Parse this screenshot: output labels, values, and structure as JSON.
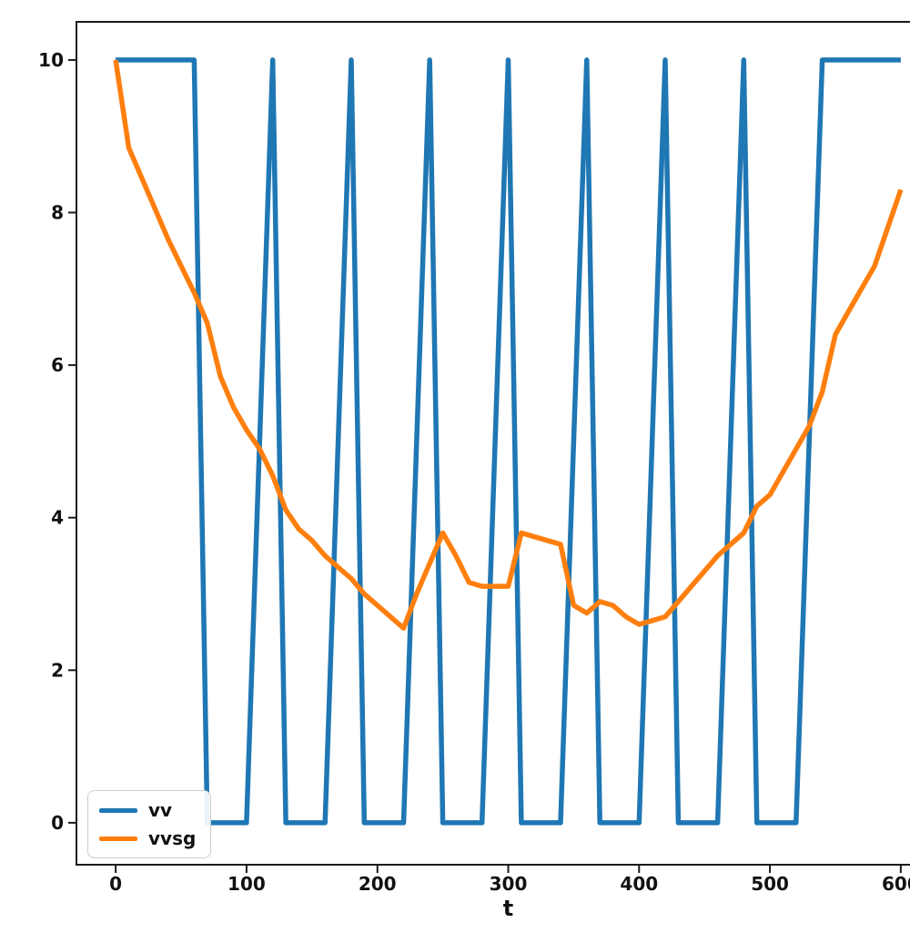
{
  "figure": {
    "background": "#ffffff",
    "text_color": "#111111",
    "spine_color": "#1a1a1a"
  },
  "chart_data": {
    "type": "line",
    "title": "",
    "xlabel": "t",
    "ylabel": "",
    "xlim": [
      -30,
      630
    ],
    "ylim": [
      -0.55,
      10.5
    ],
    "x_ticks": [
      0,
      100,
      200,
      300,
      400,
      500,
      600
    ],
    "y_ticks": [
      0,
      2,
      4,
      6,
      8,
      10
    ],
    "grid": false,
    "legend_position": "lower left",
    "series": [
      {
        "name": "vv",
        "color": "#1f77b4",
        "points": [
          [
            0,
            10
          ],
          [
            60,
            10
          ],
          [
            70,
            0
          ],
          [
            100,
            0
          ],
          [
            120,
            10
          ],
          [
            130,
            0
          ],
          [
            160,
            0
          ],
          [
            180,
            10
          ],
          [
            190,
            0
          ],
          [
            220,
            0
          ],
          [
            240,
            10
          ],
          [
            250,
            0
          ],
          [
            280,
            0
          ],
          [
            300,
            10
          ],
          [
            310,
            0
          ],
          [
            340,
            0
          ],
          [
            360,
            10
          ],
          [
            370,
            0
          ],
          [
            400,
            0
          ],
          [
            420,
            10
          ],
          [
            430,
            0
          ],
          [
            460,
            0
          ],
          [
            480,
            10
          ],
          [
            490,
            0
          ],
          [
            520,
            0
          ],
          [
            540,
            10
          ],
          [
            600,
            10
          ]
        ]
      },
      {
        "name": "vvsg",
        "color": "#ff7f0e",
        "points": [
          [
            0,
            10
          ],
          [
            10,
            8.85
          ],
          [
            20,
            8.45
          ],
          [
            30,
            8.05
          ],
          [
            40,
            7.65
          ],
          [
            50,
            7.3
          ],
          [
            60,
            6.95
          ],
          [
            70,
            6.55
          ],
          [
            80,
            5.85
          ],
          [
            90,
            5.45
          ],
          [
            100,
            5.15
          ],
          [
            110,
            4.9
          ],
          [
            120,
            4.55
          ],
          [
            130,
            4.1
          ],
          [
            140,
            3.85
          ],
          [
            150,
            3.7
          ],
          [
            160,
            3.5
          ],
          [
            170,
            3.35
          ],
          [
            180,
            3.2
          ],
          [
            190,
            3.0
          ],
          [
            200,
            2.85
          ],
          [
            210,
            2.7
          ],
          [
            220,
            2.55
          ],
          [
            230,
            3.0
          ],
          [
            240,
            3.4
          ],
          [
            250,
            3.8
          ],
          [
            260,
            3.5
          ],
          [
            270,
            3.15
          ],
          [
            280,
            3.1
          ],
          [
            290,
            3.1
          ],
          [
            300,
            3.1
          ],
          [
            310,
            3.8
          ],
          [
            320,
            3.75
          ],
          [
            330,
            3.7
          ],
          [
            340,
            3.65
          ],
          [
            350,
            2.85
          ],
          [
            360,
            2.75
          ],
          [
            370,
            2.9
          ],
          [
            380,
            2.85
          ],
          [
            390,
            2.7
          ],
          [
            400,
            2.6
          ],
          [
            410,
            2.65
          ],
          [
            420,
            2.7
          ],
          [
            430,
            2.9
          ],
          [
            440,
            3.1
          ],
          [
            450,
            3.3
          ],
          [
            460,
            3.5
          ],
          [
            470,
            3.65
          ],
          [
            480,
            3.8
          ],
          [
            490,
            4.15
          ],
          [
            500,
            4.3
          ],
          [
            510,
            4.6
          ],
          [
            520,
            4.9
          ],
          [
            530,
            5.2
          ],
          [
            540,
            5.65
          ],
          [
            550,
            6.4
          ],
          [
            560,
            6.7
          ],
          [
            570,
            7.0
          ],
          [
            580,
            7.3
          ],
          [
            590,
            7.8
          ],
          [
            600,
            8.3
          ]
        ]
      }
    ]
  },
  "legend": {
    "items": [
      {
        "label": "vv",
        "color": "#1f77b4"
      },
      {
        "label": "vvsg",
        "color": "#ff7f0e"
      }
    ]
  }
}
